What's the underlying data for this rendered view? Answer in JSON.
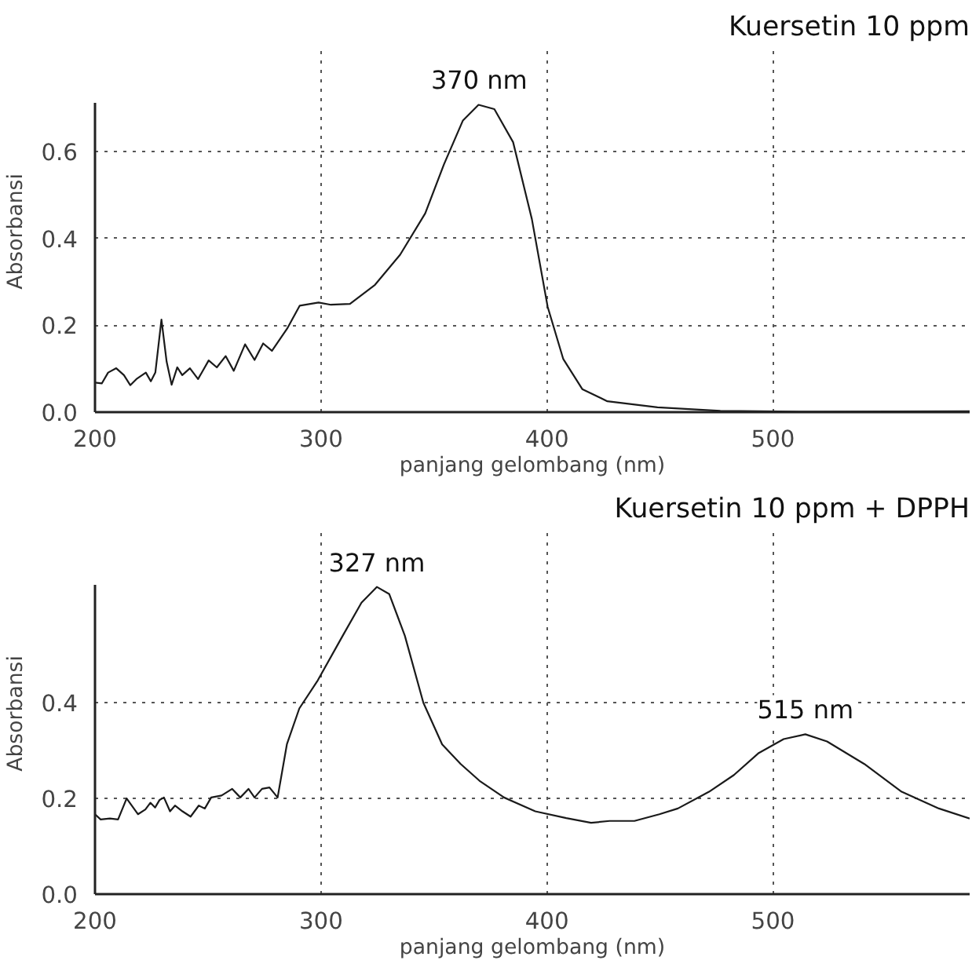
{
  "chart_data": [
    {
      "type": "line",
      "title": "Kuersetin 10 ppm",
      "xlabel": "panjang gelombang (nm)",
      "ylabel": "Absorbansi",
      "xlim": [
        200,
        587
      ],
      "ylim": [
        0,
        0.71
      ],
      "xticks": [
        200,
        300,
        400,
        500
      ],
      "yticks": [
        {
          "value": 0,
          "label": "0.0"
        },
        0.2,
        0.4,
        0.6
      ],
      "grid": true,
      "annotations": [
        {
          "text": "370 nm",
          "x": 370,
          "y": 0.707
        }
      ],
      "series": [
        {
          "color": "#1a1a1a",
          "x": [
            200,
            203,
            205.8,
            209.4,
            212.8,
            215.6,
            218.3,
            222.5,
            224.7,
            226.7,
            229.4,
            231.7,
            233.9,
            236.4,
            238.6,
            242,
            245.6,
            250.3,
            253.9,
            257.8,
            261.4,
            266.4,
            270.6,
            274.4,
            278.3,
            285,
            290.6,
            298.9,
            304.4,
            312.8,
            323.9,
            335,
            346.1,
            354.4,
            362.8,
            369.7,
            376.7,
            385,
            393.3,
            400.3,
            407.2,
            415.6,
            426.7,
            448.9,
            476.7,
            518,
            587
          ],
          "values": [
            0.068,
            0.066,
            0.091,
            0.101,
            0.085,
            0.062,
            0.076,
            0.091,
            0.071,
            0.091,
            0.213,
            0.116,
            0.063,
            0.103,
            0.085,
            0.101,
            0.076,
            0.119,
            0.103,
            0.129,
            0.095,
            0.156,
            0.12,
            0.158,
            0.141,
            0.192,
            0.245,
            0.252,
            0.247,
            0.249,
            0.293,
            0.362,
            0.457,
            0.57,
            0.671,
            0.707,
            0.697,
            0.621,
            0.444,
            0.242,
            0.122,
            0.053,
            0.025,
            0.011,
            0.003,
            0.001,
            0.002
          ]
        }
      ]
    },
    {
      "type": "line",
      "title": "Kuersetin 10 ppm + DPPH",
      "xlabel": "panjang gelombang (nm)",
      "ylabel": "Absorbansi",
      "xlim": [
        200,
        587
      ],
      "ylim": [
        0,
        0.645
      ],
      "xticks": [
        200,
        300,
        400,
        500
      ],
      "yticks": [
        {
          "value": 0,
          "label": "0.0"
        },
        0.2,
        0.4
      ],
      "grid": true,
      "annotations": [
        {
          "text": "327 nm",
          "x": 324.7,
          "y": 0.642
        },
        {
          "text": "515 nm",
          "x": 514.3,
          "y": 0.334
        }
      ],
      "series": [
        {
          "color": "#1a1a1a",
          "x": [
            200,
            202.5,
            206.6,
            210.2,
            214,
            219,
            222.3,
            224.5,
            226.6,
            228.6,
            230.5,
            233.2,
            235.4,
            238.7,
            242.3,
            245.9,
            248.6,
            251.4,
            256,
            260.7,
            264.3,
            267.9,
            270.6,
            273.9,
            277.2,
            280.8,
            284.9,
            290.4,
            298.6,
            309.6,
            317.9,
            324.7,
            330.2,
            337.1,
            345.3,
            353.6,
            361.8,
            370.1,
            381,
            394.8,
            408.5,
            419.5,
            427.7,
            438.7,
            449.7,
            457.9,
            471.7,
            482.7,
            493.7,
            504.7,
            514.3,
            523.9,
            540.4,
            556.9,
            573.4,
            587
          ],
          "values": [
            0.167,
            0.156,
            0.158,
            0.156,
            0.2,
            0.167,
            0.177,
            0.191,
            0.181,
            0.197,
            0.202,
            0.173,
            0.185,
            0.173,
            0.162,
            0.185,
            0.179,
            0.202,
            0.206,
            0.22,
            0.202,
            0.22,
            0.202,
            0.22,
            0.223,
            0.202,
            0.313,
            0.388,
            0.447,
            0.54,
            0.609,
            0.642,
            0.627,
            0.54,
            0.4,
            0.313,
            0.272,
            0.237,
            0.202,
            0.173,
            0.159,
            0.149,
            0.153,
            0.153,
            0.167,
            0.179,
            0.214,
            0.249,
            0.295,
            0.324,
            0.334,
            0.319,
            0.272,
            0.214,
            0.179,
            0.158
          ]
        }
      ]
    }
  ]
}
